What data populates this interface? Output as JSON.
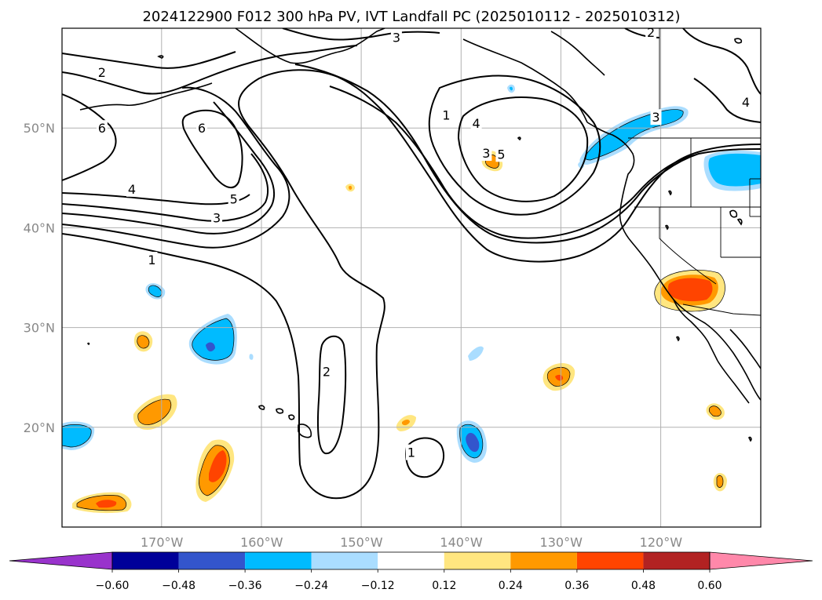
{
  "title": "2024122900 F012 300 hPa PV, IVT Landfall PC (2025010112 - 2025010312)",
  "map": {
    "lon_range": [
      -180,
      -110
    ],
    "lat_range": [
      10,
      60
    ],
    "lat_ticks": [
      {
        "lat": 50,
        "label": "50°N"
      },
      {
        "lat": 40,
        "label": "40°N"
      },
      {
        "lat": 30,
        "label": "30°N"
      },
      {
        "lat": 20,
        "label": "20°N"
      }
    ],
    "lon_ticks": [
      {
        "lon": -170,
        "label": "170°W"
      },
      {
        "lon": -160,
        "label": "160°W"
      },
      {
        "lon": -150,
        "label": "150°W"
      },
      {
        "lon": -140,
        "label": "140°W"
      },
      {
        "lon": -130,
        "label": "130°W"
      },
      {
        "lon": -120,
        "label": "120°W"
      }
    ],
    "pv_contour_labels": [
      {
        "text": "3",
        "lon": -146.5,
        "lat": 59.1
      },
      {
        "text": "2",
        "lon": -121.0,
        "lat": 59.6
      },
      {
        "text": "2",
        "lon": -176.0,
        "lat": 55.6
      },
      {
        "text": "6",
        "lon": -176.0,
        "lat": 50.0
      },
      {
        "text": "6",
        "lon": -166.0,
        "lat": 50.0
      },
      {
        "text": "1",
        "lon": -141.5,
        "lat": 51.3
      },
      {
        "text": "4",
        "lon": -138.5,
        "lat": 50.5
      },
      {
        "text": "3",
        "lon": -137.5,
        "lat": 47.5
      },
      {
        "text": "5",
        "lon": -136.0,
        "lat": 47.4
      },
      {
        "text": "3",
        "lon": -120.5,
        "lat": 51.1
      },
      {
        "text": "4",
        "lon": -111.5,
        "lat": 52.6
      },
      {
        "text": "4",
        "lon": -173.0,
        "lat": 43.9
      },
      {
        "text": "5",
        "lon": -162.8,
        "lat": 42.9
      },
      {
        "text": "3",
        "lon": -164.5,
        "lat": 41.0
      },
      {
        "text": "1",
        "lon": -171.0,
        "lat": 36.8
      },
      {
        "text": "2",
        "lon": -153.5,
        "lat": 25.6
      },
      {
        "text": "1",
        "lon": -145.0,
        "lat": 17.5
      }
    ]
  },
  "colorbar": {
    "boundaries": [
      -0.6,
      -0.48,
      -0.36,
      -0.24,
      -0.12,
      0.12,
      0.24,
      0.36,
      0.48,
      0.6
    ],
    "tick_labels": [
      "−0.60",
      "−0.48",
      "−0.36",
      "−0.24",
      "−0.12",
      "0.12",
      "0.24",
      "0.36",
      "0.48",
      "0.60"
    ],
    "under_color": "#9933cc",
    "over_color": "#ff88aa",
    "colors": [
      "#000099",
      "#3355cc",
      "#00bbff",
      "#aaddff",
      "#ffffff",
      "#ffe680",
      "#ff9900",
      "#ff4400",
      "#b22222"
    ]
  },
  "colors": {
    "pos1": "#ffe680",
    "pos2": "#ff9900",
    "pos3": "#ff4400",
    "neg1": "#aaddff",
    "neg2": "#00bbff",
    "neg3": "#3355cc"
  }
}
